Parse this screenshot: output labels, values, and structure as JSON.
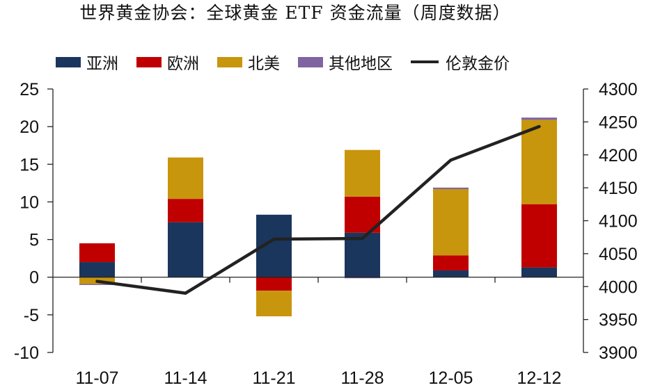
{
  "title": "世界黄金协会：全球黄金 ETF 资金流量（周度数据）",
  "legend": [
    {
      "label": "亚洲",
      "color": "#1b365d",
      "type": "bar"
    },
    {
      "label": "欧洲",
      "color": "#c00000",
      "type": "bar"
    },
    {
      "label": "北美",
      "color": "#c8960c",
      "type": "bar"
    },
    {
      "label": "其他地区",
      "color": "#8064a2",
      "type": "bar"
    },
    {
      "label": "伦敦金价",
      "color": "#222222",
      "type": "line"
    }
  ],
  "chart_data": {
    "type": "bar",
    "title": "世界黄金协会：全球黄金 ETF 资金流量（周度数据）",
    "stacked": true,
    "categories": [
      "11-07",
      "11-14",
      "11-21",
      "11-28",
      "12-05",
      "12-12"
    ],
    "series": [
      {
        "name": "亚洲",
        "type": "bar",
        "axis": "left",
        "color": "#1b365d",
        "values": [
          2.0,
          7.3,
          8.3,
          5.9,
          0.9,
          1.3
        ]
      },
      {
        "name": "欧洲",
        "type": "bar",
        "axis": "left",
        "color": "#c00000",
        "values": [
          2.5,
          3.1,
          -1.8,
          4.8,
          2.0,
          8.4
        ]
      },
      {
        "name": "北美",
        "type": "bar",
        "axis": "left",
        "color": "#c8960c",
        "values": [
          -0.9,
          5.5,
          -3.4,
          6.2,
          8.8,
          11.2
        ]
      },
      {
        "name": "其他地区",
        "type": "bar",
        "axis": "left",
        "color": "#8064a2",
        "values": [
          -0.1,
          0.0,
          0.0,
          -0.1,
          0.2,
          0.3
        ]
      },
      {
        "name": "伦敦金价",
        "type": "line",
        "axis": "right",
        "color": "#222222",
        "values": [
          4008,
          3990,
          4072,
          4073,
          4192,
          4243
        ]
      }
    ],
    "xlabel": "",
    "ylabel": "",
    "ylim": [
      -10,
      25
    ],
    "yticks": [
      "25",
      "20",
      "15",
      "10",
      "5",
      "0",
      "-5",
      "-10"
    ],
    "y2lim": [
      3900,
      4300
    ],
    "y2ticks": [
      "4300",
      "4250",
      "4200",
      "4150",
      "4100",
      "4050",
      "4000",
      "3950",
      "3900"
    ],
    "grid": false,
    "legend_position": "top"
  }
}
